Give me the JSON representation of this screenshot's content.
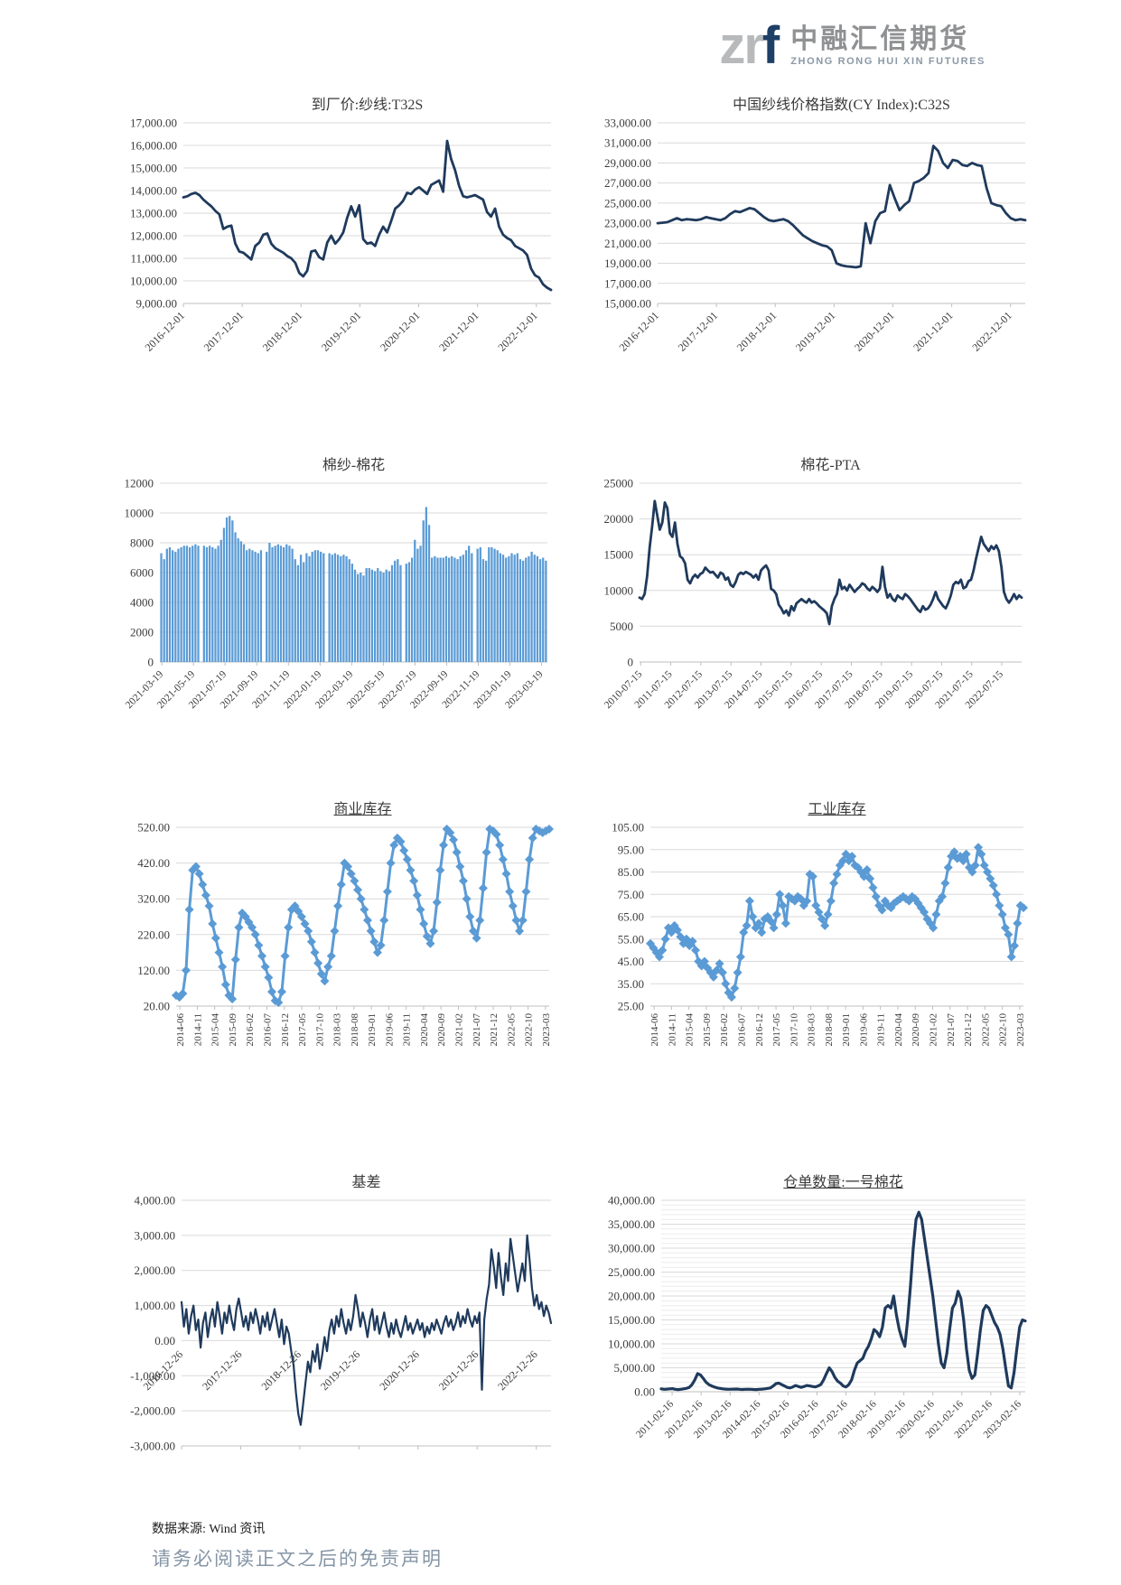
{
  "logo": {
    "zr": "zr",
    "f": "f",
    "cn": "中融汇信期货",
    "en": "ZHONG RONG HUI XIN FUTURES"
  },
  "footer": {
    "source": "数据来源: Wind 资讯",
    "disclaimer": "请务必阅读正文之后的免责声明"
  },
  "colors": {
    "navy": "#1f3a5c",
    "blue": "#5b9bd5",
    "grid": "#d9d9d9",
    "grid_minor": "#ececec",
    "axis": "#bfbfbf",
    "tick_text": "#3c3c3c"
  },
  "chart_data": [
    {
      "id": "c1",
      "type": "line",
      "title": "到厂价:纱线:T32S",
      "underline": false,
      "color": "#1f3a5c",
      "ylim": [
        9000,
        17000
      ],
      "ystep": 1000,
      "fmt": "comma2",
      "x0": 0,
      "x1": 0.96,
      "x_labels": [
        "2016-12-01",
        "2017-12-01",
        "2018-12-01",
        "2019-12-01",
        "2020-12-01",
        "2021-12-01",
        "2022-12-01"
      ],
      "values": [
        13700,
        13750,
        13850,
        13900,
        13800,
        13600,
        13450,
        13300,
        13100,
        12950,
        12300,
        12400,
        12450,
        11650,
        11300,
        11250,
        11100,
        10950,
        11550,
        11700,
        12050,
        12100,
        11650,
        11450,
        11350,
        11250,
        11100,
        11000,
        10800,
        10350,
        10200,
        10450,
        11300,
        11350,
        11050,
        10950,
        11700,
        12000,
        11650,
        11850,
        12150,
        12800,
        13300,
        12850,
        13350,
        11850,
        11650,
        11700,
        11550,
        12050,
        12400,
        12150,
        12650,
        13200,
        13350,
        13550,
        13900,
        13850,
        14050,
        14150,
        14000,
        13850,
        14250,
        14350,
        14450,
        13950,
        16200,
        15400,
        14900,
        14200,
        13750,
        13700,
        13750,
        13800,
        13700,
        13600,
        13050,
        12850,
        13200,
        12400,
        12050,
        11900,
        11800,
        11550,
        11450,
        11350,
        11150,
        10550,
        10250,
        10150,
        9850,
        9700,
        9600
      ]
    },
    {
      "id": "c2",
      "type": "line",
      "title": "中国纱线价格指数(CY Index):C32S",
      "underline": false,
      "color": "#1f3a5c",
      "ylim": [
        15000,
        33000
      ],
      "ystep": 2000,
      "fmt": "comma2",
      "x0": 0,
      "x1": 0.96,
      "x_labels": [
        "2016-12-01",
        "2017-12-01",
        "2018-12-01",
        "2019-12-01",
        "2020-12-01",
        "2021-12-01",
        "2022-12-01"
      ],
      "values": [
        23000,
        23050,
        23100,
        23300,
        23500,
        23300,
        23400,
        23350,
        23300,
        23400,
        23600,
        23500,
        23400,
        23300,
        23500,
        23900,
        24200,
        24100,
        24300,
        24500,
        24400,
        24000,
        23600,
        23300,
        23200,
        23300,
        23400,
        23200,
        22800,
        22300,
        21800,
        21500,
        21200,
        21000,
        20800,
        20700,
        20300,
        19000,
        18800,
        18700,
        18650,
        18600,
        18700,
        23000,
        21000,
        23200,
        24000,
        24200,
        26800,
        25500,
        24300,
        24800,
        25200,
        27000,
        27200,
        27500,
        28000,
        30700,
        30200,
        29000,
        28500,
        29300,
        29200,
        28800,
        28700,
        29000,
        28800,
        28700,
        26500,
        25000,
        24800,
        24700,
        24000,
        23500,
        23300,
        23400,
        23300
      ]
    },
    {
      "id": "c3",
      "type": "bar",
      "title": "棉纱-棉花",
      "underline": false,
      "color": "#5b9bd5",
      "ylim": [
        0,
        12000
      ],
      "ystep": 2000,
      "fmt": "plain",
      "x0": 0.005,
      "x1": 0.985,
      "x_labels": [
        "2021-03-19",
        "2021-05-19",
        "2021-07-19",
        "2021-09-19",
        "2021-11-19",
        "2022-01-19",
        "2022-03-19",
        "2022-05-19",
        "2022-07-19",
        "2022-09-19",
        "2022-11-19",
        "2023-01-19",
        "2023-03-19"
      ],
      "values": [
        7300,
        6900,
        7600,
        7700,
        7500,
        7400,
        7600,
        7700,
        7800,
        7800,
        7700,
        7800,
        7900,
        7800,
        null,
        7800,
        7700,
        7800,
        7700,
        7600,
        7800,
        8200,
        9000,
        9700,
        9800,
        9500,
        8700,
        8300,
        8100,
        7900,
        7500,
        7600,
        7500,
        7400,
        7300,
        7500,
        null,
        7400,
        8000,
        7700,
        7800,
        7900,
        7800,
        7700,
        7900,
        7800,
        7600,
        6900,
        6500,
        7200,
        6700,
        7300,
        7100,
        7400,
        7500,
        7500,
        7400,
        7300,
        null,
        7300,
        7200,
        7300,
        7200,
        7100,
        7200,
        7100,
        6900,
        6600,
        6200,
        5900,
        6000,
        5800,
        6300,
        6300,
        6200,
        6100,
        6300,
        6100,
        6000,
        6200,
        6100,
        6500,
        6800,
        6900,
        6500,
        null,
        6600,
        6700,
        7000,
        8200,
        7600,
        7800,
        9500,
        10400,
        9200,
        7000,
        7100,
        7000,
        7000,
        7000,
        7100,
        7000,
        7100,
        7000,
        6900,
        7100,
        7200,
        7500,
        7800,
        7300,
        null,
        7600,
        7700,
        6900,
        6800,
        7700,
        7700,
        7600,
        7500,
        7300,
        7200,
        7000,
        7100,
        7300,
        7200,
        7300,
        6900,
        6800,
        7000,
        7100,
        7400,
        7200,
        7100,
        6900,
        7000,
        6800
      ]
    },
    {
      "id": "c4",
      "type": "line",
      "title": "棉花-PTA",
      "underline": false,
      "color": "#1f3a5c",
      "ylim": [
        0,
        25000
      ],
      "ystep": 5000,
      "fmt": "plain",
      "x0": 0.003,
      "x1": 0.948,
      "x_labels": [
        "2010-07-15",
        "2011-07-15",
        "2012-07-15",
        "2013-07-15",
        "2014-07-15",
        "2015-07-15",
        "2016-07-15",
        "2017-07-15",
        "2018-07-15",
        "2019-07-15",
        "2020-07-15",
        "2021-07-15",
        "2022-07-15"
      ],
      "values": [
        9000,
        8800,
        9500,
        12000,
        16000,
        19000,
        22500,
        20500,
        18500,
        19500,
        22300,
        21500,
        18000,
        17500,
        19500,
        16500,
        14800,
        14500,
        13800,
        11500,
        11000,
        11800,
        12200,
        11800,
        12300,
        12500,
        13200,
        12800,
        12500,
        12600,
        12200,
        11800,
        12500,
        12300,
        11500,
        11800,
        10800,
        10500,
        11200,
        12200,
        12500,
        12300,
        12600,
        12400,
        12200,
        11800,
        12200,
        11500,
        12800,
        13200,
        13500,
        12800,
        10200,
        10000,
        9500,
        8000,
        7500,
        6800,
        7200,
        6500,
        7800,
        7200,
        8200,
        8500,
        8800,
        8500,
        8300,
        8800,
        8300,
        8500,
        8200,
        7800,
        7500,
        7200,
        6800,
        5300,
        7800,
        8800,
        9500,
        11500,
        10200,
        10500,
        10000,
        10800,
        10300,
        9800,
        10200,
        10500,
        11000,
        10800,
        10300,
        10000,
        10500,
        10200,
        9800,
        10300,
        13300,
        10500,
        9000,
        9500,
        8800,
        8500,
        9300,
        9000,
        8800,
        9500,
        9200,
        8800,
        8300,
        7800,
        7300,
        7000,
        7800,
        7300,
        7500,
        8000,
        8800,
        9800,
        8800,
        8300,
        7800,
        7500,
        8300,
        9300,
        10800,
        11200,
        11000,
        11500,
        10300,
        10500,
        11300,
        11500,
        12800,
        14500,
        16000,
        17500,
        16500,
        16000,
        15500,
        16200,
        15800,
        16300,
        15500,
        13300,
        9800,
        8800,
        8300,
        8800,
        9500,
        8800,
        9300,
        9000
      ]
    },
    {
      "id": "c5",
      "type": "line-markers",
      "title": "商业库存",
      "underline": true,
      "color": "#5b9bd5",
      "ylim": [
        20,
        520
      ],
      "ystep": 100,
      "fmt": "comma2",
      "x0": 0.01,
      "x1": 0.99,
      "x_labels": [
        "2014-06",
        "2014-11",
        "2015-04",
        "2015-09",
        "2016-02",
        "2016-07",
        "2016-12",
        "2017-05",
        "2017-10",
        "2018-03",
        "2018-08",
        "2019-01",
        "2019-06",
        "2019-11",
        "2020-04",
        "2020-09",
        "2021-02",
        "2021-07",
        "2021-12",
        "2022-05",
        "2022-10",
        "2023-03"
      ],
      "values": [
        50,
        45,
        55,
        120,
        290,
        400,
        410,
        390,
        360,
        330,
        300,
        250,
        210,
        170,
        130,
        80,
        50,
        40,
        150,
        240,
        280,
        270,
        255,
        240,
        220,
        190,
        160,
        130,
        100,
        60,
        35,
        30,
        60,
        160,
        240,
        290,
        300,
        285,
        270,
        250,
        230,
        200,
        170,
        140,
        110,
        90,
        130,
        160,
        230,
        300,
        360,
        420,
        410,
        390,
        370,
        345,
        320,
        290,
        260,
        230,
        200,
        170,
        190,
        260,
        340,
        420,
        470,
        490,
        480,
        455,
        430,
        400,
        370,
        330,
        290,
        250,
        215,
        195,
        230,
        310,
        400,
        470,
        515,
        505,
        485,
        450,
        410,
        370,
        320,
        270,
        230,
        210,
        260,
        350,
        450,
        515,
        510,
        500,
        470,
        430,
        390,
        340,
        300,
        260,
        230,
        260,
        340,
        430,
        490,
        515,
        510,
        505,
        510,
        515
      ]
    },
    {
      "id": "c6",
      "type": "line-markers",
      "title": "工业库存",
      "underline": true,
      "color": "#5b9bd5",
      "ylim": [
        25,
        105
      ],
      "ystep": 10,
      "fmt": "comma2",
      "x0": 0.01,
      "x1": 0.99,
      "x_labels": [
        "2014-06",
        "2014-11",
        "2015-04",
        "2015-09",
        "2016-02",
        "2016-07",
        "2016-12",
        "2017-05",
        "2017-10",
        "2018-03",
        "2018-08",
        "2019-01",
        "2019-06",
        "2019-11",
        "2020-04",
        "2020-09",
        "2021-02",
        "2021-07",
        "2021-12",
        "2022-05",
        "2022-10",
        "2023-03"
      ],
      "values": [
        53,
        51,
        49,
        47,
        50,
        55,
        60,
        58,
        61,
        59,
        56,
        53,
        55,
        52,
        54,
        50,
        45,
        43,
        45,
        42,
        40,
        38,
        41,
        44,
        40,
        35,
        31,
        29,
        33,
        40,
        47,
        58,
        61,
        72,
        65,
        60,
        62,
        58,
        64,
        65,
        63,
        60,
        66,
        75,
        70,
        62,
        74,
        73,
        72,
        74,
        73,
        70,
        72,
        84,
        83,
        70,
        67,
        64,
        61,
        66,
        72,
        80,
        84,
        88,
        90,
        93,
        90,
        92,
        88,
        87,
        85,
        83,
        86,
        82,
        78,
        74,
        70,
        68,
        72,
        70,
        69,
        71,
        72,
        73,
        74,
        73,
        72,
        74,
        73,
        71,
        69,
        67,
        64,
        62,
        60,
        66,
        72,
        74,
        80,
        87,
        92,
        94,
        91,
        92,
        90,
        93,
        87,
        85,
        88,
        96,
        93,
        88,
        85,
        82,
        79,
        75,
        70,
        66,
        60,
        57,
        47,
        52,
        62,
        70,
        69
      ]
    },
    {
      "id": "c7",
      "type": "line",
      "title": "基差",
      "underline": false,
      "color": "#1f3a5c",
      "ylim": [
        -3000,
        4000
      ],
      "ystep": 1000,
      "fmt": "comma2",
      "x0": 0,
      "x1": 0.96,
      "labels_at_zero": true,
      "x_labels": [
        "2016-12-26",
        "2017-12-26",
        "2018-12-26",
        "2019-12-26",
        "2020-12-26",
        "2021-12-26",
        "2022-12-26"
      ],
      "values": [
        1100,
        400,
        900,
        200,
        700,
        1000,
        300,
        600,
        -200,
        500,
        800,
        100,
        600,
        900,
        400,
        1100,
        700,
        200,
        800,
        500,
        1000,
        600,
        300,
        900,
        1200,
        800,
        400,
        700,
        300,
        800,
        500,
        900,
        600,
        200,
        700,
        400,
        800,
        300,
        600,
        900,
        500,
        100,
        600,
        -100,
        400,
        200,
        -300,
        -700,
        -1500,
        -2100,
        -2400,
        -1800,
        -1200,
        -600,
        -900,
        -300,
        -600,
        -100,
        -800,
        -400,
        100,
        -300,
        300,
        600,
        200,
        700,
        400,
        900,
        500,
        200,
        600,
        300,
        700,
        1300,
        900,
        400,
        800,
        500,
        100,
        600,
        900,
        300,
        700,
        200,
        500,
        800,
        400,
        100,
        500,
        200,
        600,
        300,
        100,
        400,
        700,
        300,
        500,
        200,
        400,
        600,
        300,
        500,
        100,
        400,
        200,
        500,
        300,
        600,
        400,
        200,
        500,
        700,
        400,
        600,
        300,
        500,
        800,
        400,
        700,
        500,
        900,
        600,
        400,
        700,
        500,
        800,
        -1400,
        600,
        1200,
        1600,
        2600,
        2100,
        1500,
        2500,
        1800,
        1300,
        2200,
        1700,
        2900,
        2400,
        1900,
        1400,
        1800,
        2200,
        1700,
        3000,
        2300,
        1500,
        1000,
        1300,
        900,
        1100,
        700,
        1000,
        800,
        500
      ]
    },
    {
      "id": "c8",
      "type": "line",
      "title": "仓单数量:一号棉花",
      "underline": true,
      "color": "#1f3a5c",
      "ylim": [
        0,
        40000
      ],
      "ystep": 5000,
      "minor_step": 1000,
      "fmt": "comma2",
      "x0": 0.03,
      "x1": 0.985,
      "x_labels": [
        "2011-02-16",
        "2012-02-16",
        "2013-02-16",
        "2014-02-16",
        "2015-02-16",
        "2016-02-16",
        "2017-02-16",
        "2018-02-16",
        "2019-02-16",
        "2020-02-16",
        "2021-02-16",
        "2022-02-16",
        "2023-02-16"
      ],
      "values": [
        600,
        500,
        550,
        600,
        650,
        500,
        450,
        500,
        600,
        700,
        900,
        1500,
        2500,
        3800,
        3500,
        2800,
        2000,
        1500,
        1200,
        1000,
        800,
        700,
        600,
        550,
        500,
        520,
        540,
        560,
        500,
        480,
        500,
        520,
        500,
        480,
        460,
        500,
        550,
        600,
        700,
        800,
        1200,
        1700,
        1800,
        1500,
        1200,
        900,
        800,
        1000,
        1300,
        1100,
        900,
        1100,
        1300,
        1200,
        1100,
        1000,
        1200,
        1500,
        2500,
        3800,
        5000,
        4200,
        3000,
        2200,
        1800,
        1200,
        1000,
        1500,
        2500,
        4500,
        6000,
        6500,
        7000,
        8500,
        9500,
        11000,
        13000,
        12500,
        11500,
        13500,
        17500,
        18000,
        17500,
        20000,
        16000,
        13000,
        11000,
        9500,
        15000,
        22000,
        30000,
        36000,
        37500,
        36000,
        32000,
        28000,
        24000,
        20000,
        15000,
        10000,
        6000,
        5000,
        8000,
        13000,
        17500,
        18500,
        21000,
        19500,
        15000,
        9000,
        4500,
        2800,
        3500,
        8000,
        13000,
        17000,
        18000,
        17500,
        16000,
        14500,
        13500,
        12000,
        9000,
        5000,
        1200,
        800,
        4000,
        9000,
        13500,
        15000,
        14800
      ]
    }
  ]
}
